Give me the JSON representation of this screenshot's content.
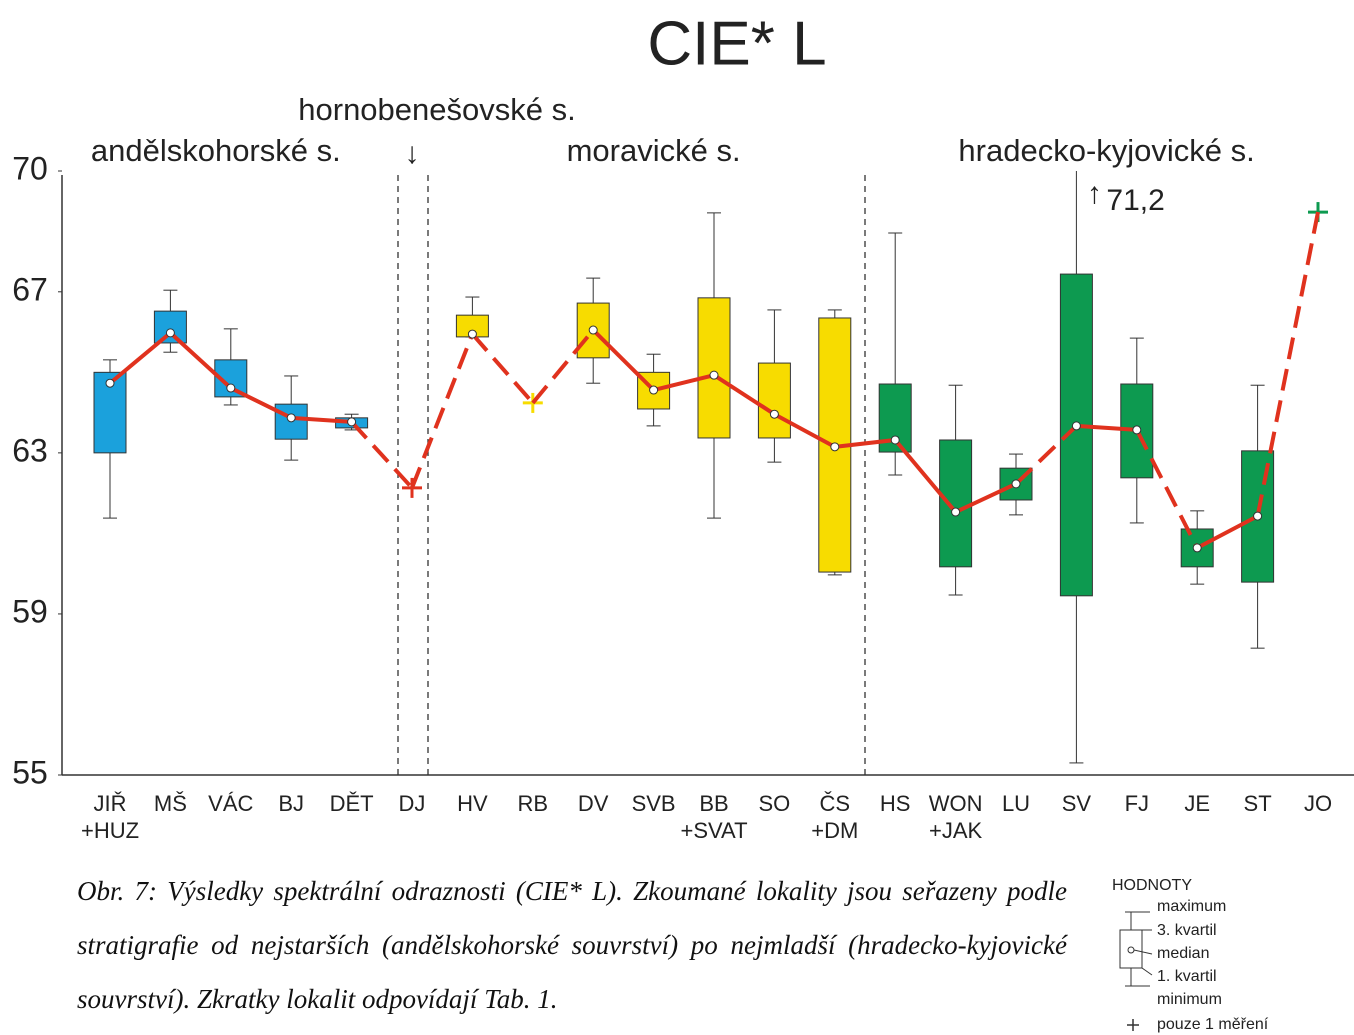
{
  "chart_data": {
    "type": "box",
    "title": "CIE* L",
    "ylim": [
      55,
      70
    ],
    "yticks": [
      55,
      59,
      63,
      67,
      70
    ],
    "line_color": "#e0321e",
    "series": [
      {
        "name": "andělskohorské s.",
        "color": "#1ba1dc",
        "categories": [
          "JIŘ\n+HUZ",
          "MŠ",
          "VÁC",
          "BJ",
          "DĚT"
        ],
        "min": [
          61.38,
          65.5,
          64.19,
          62.82,
          63.57
        ],
        "q1": [
          63.0,
          65.73,
          64.39,
          63.34,
          63.62
        ],
        "median": [
          64.73,
          65.98,
          64.61,
          63.87,
          63.77
        ],
        "q3": [
          65.0,
          66.52,
          65.31,
          64.21,
          63.87
        ],
        "max": [
          65.31,
          67.04,
          66.08,
          64.91,
          63.96
        ]
      },
      {
        "name": "hornobenešovské s.",
        "color": "#e0321e",
        "categories": [
          "DJ"
        ],
        "single": [
          62.13
        ]
      },
      {
        "name": "moravické s.",
        "color": "#f7dc00",
        "categories": [
          "HV",
          "RB",
          "DV",
          "SVB",
          "BB\n+SVAT",
          "SO",
          "ČS\n+DM"
        ],
        "min": [
          65.88,
          null,
          64.73,
          63.67,
          61.38,
          62.77,
          59.97
        ],
        "q1": [
          65.88,
          null,
          65.36,
          64.09,
          63.37,
          63.37,
          60.04
        ],
        "median": [
          65.95,
          null,
          66.05,
          64.56,
          64.93,
          63.96,
          63.15
        ],
        "q3": [
          66.42,
          null,
          66.72,
          65.0,
          66.85,
          65.23,
          66.35
        ],
        "max": [
          66.87,
          null,
          67.34,
          65.45,
          68.96,
          66.55,
          66.55
        ],
        "single": [
          null,
          64.24,
          null,
          null,
          null,
          null,
          null
        ]
      },
      {
        "name": "hradecko-kyjovické s.",
        "color": "#0d9a50",
        "categories": [
          "HS",
          "WON\n+JAK",
          "LU",
          "SV",
          "FJ",
          "JE",
          "ST",
          "JO"
        ],
        "min": [
          62.45,
          59.47,
          61.46,
          55.3,
          61.26,
          59.74,
          58.15,
          null
        ],
        "q1": [
          63.02,
          60.17,
          61.83,
          59.45,
          62.38,
          60.17,
          59.79,
          null
        ],
        "median": [
          63.32,
          61.53,
          62.23,
          63.67,
          63.57,
          60.64,
          61.43,
          null
        ],
        "q3": [
          64.71,
          63.32,
          62.62,
          67.44,
          64.71,
          61.11,
          63.05,
          null
        ],
        "max": [
          68.46,
          64.68,
          62.97,
          71.2,
          65.85,
          61.56,
          64.68,
          null
        ],
        "max_value_labels": [
          null,
          null,
          null,
          "71,2",
          null,
          null,
          null,
          null
        ],
        "single": [
          null,
          null,
          null,
          null,
          null,
          null,
          null,
          68.98
        ]
      }
    ],
    "legend": {
      "title": "HODNOTY",
      "max": "maximum",
      "q3": "3. kvartil",
      "median": "median",
      "q1": "1. kvartil",
      "min": "minimum",
      "single": "pouze 1 měření"
    },
    "caption": "Obr. 7: Výsledky spektrální odraznosti (CIE* L). Zkoumané lokality jsou seřazeny podle stratigrafie od nejstarších (andělskohorské souvrství) po nejmladší (hradecko-kyjovické souvrství). Zkratky lokalit odpovídají Tab. 1."
  }
}
